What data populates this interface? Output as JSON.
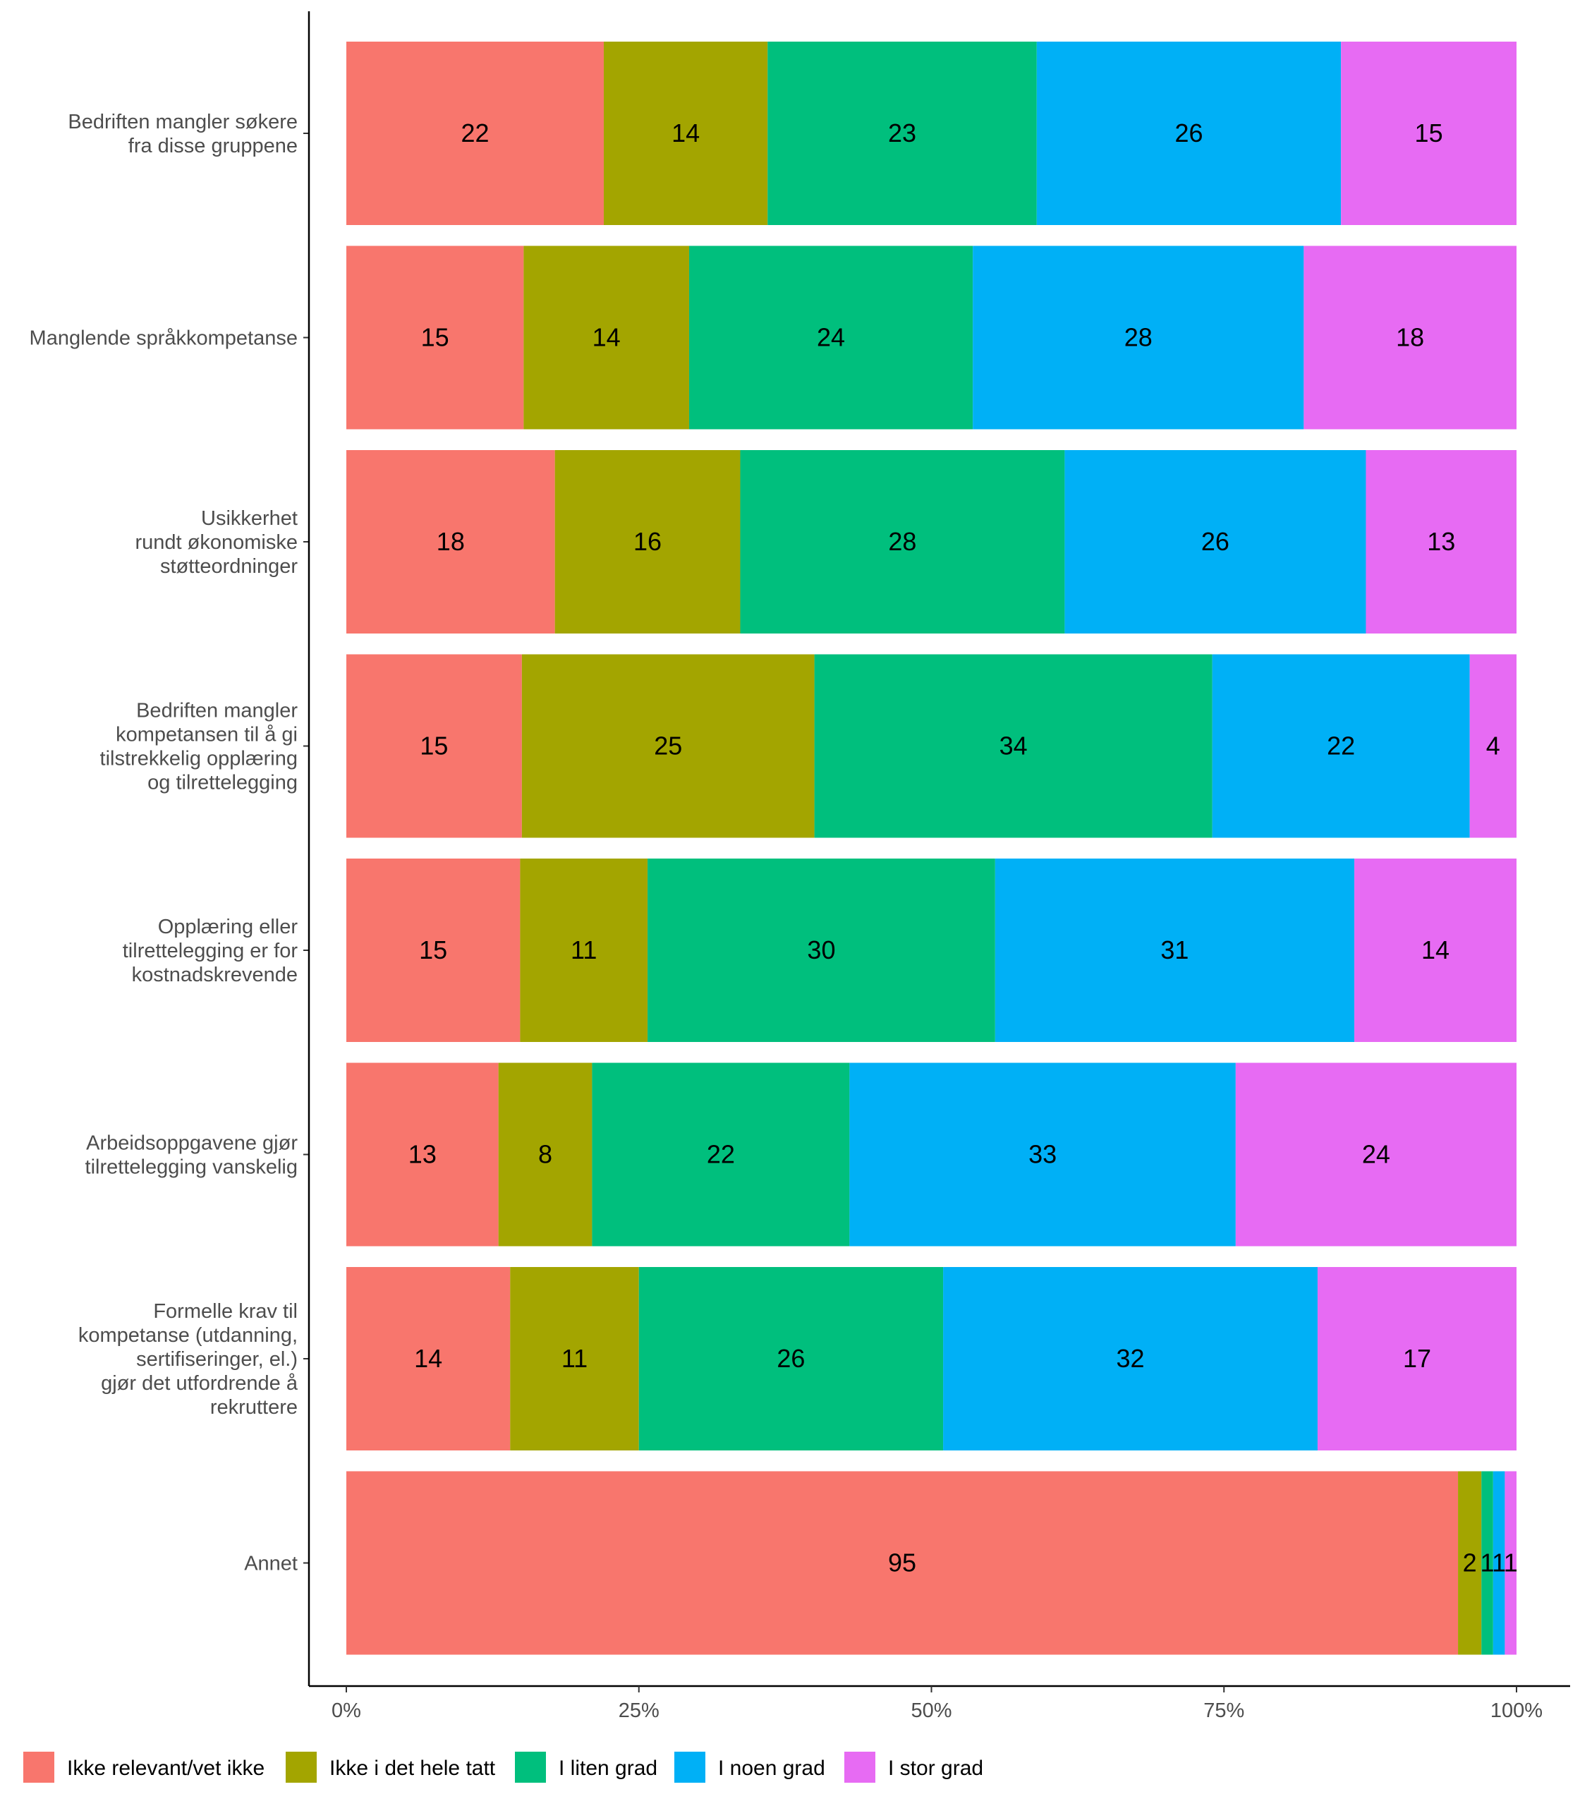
{
  "chart_data": {
    "type": "bar",
    "orientation": "horizontal",
    "stacked": true,
    "normalized": true,
    "categories": [
      [
        "Bedriften mangler søkere",
        "fra disse gruppene"
      ],
      [
        "Manglende språkkompetanse"
      ],
      [
        "Usikkerhet",
        "rundt økonomiske",
        "støtteordninger"
      ],
      [
        "Bedriften mangler",
        "kompetansen til å gi",
        "tilstrekkelig opplæring",
        "og tilrettelegging"
      ],
      [
        "Opplæring eller",
        "tilrettelegging er for",
        "kostnadskrevende"
      ],
      [
        "Arbeidsoppgavene gjør",
        "tilrettelegging vanskelig"
      ],
      [
        "Formelle krav til",
        "kompetanse (utdanning,",
        "sertifiseringer, el.)",
        "gjør det utfordrende å",
        "rekruttere"
      ],
      [
        "Annet"
      ]
    ],
    "series": [
      {
        "name": "Ikke relevant/vet ikke",
        "color": "#F8766D",
        "values": [
          22,
          15,
          18,
          15,
          15,
          13,
          14,
          95
        ]
      },
      {
        "name": "Ikke i det hele tatt",
        "color": "#A3A500",
        "values": [
          14,
          14,
          16,
          25,
          11,
          8,
          11,
          2
        ]
      },
      {
        "name": "I liten grad",
        "color": "#00BF7D",
        "values": [
          23,
          24,
          28,
          34,
          30,
          22,
          26,
          1
        ]
      },
      {
        "name": "I noen grad",
        "color": "#00B0F6",
        "values": [
          26,
          28,
          26,
          22,
          31,
          33,
          32,
          1
        ]
      },
      {
        "name": "I stor grad",
        "color": "#E76BF3",
        "values": [
          15,
          18,
          13,
          4,
          14,
          24,
          17,
          1
        ]
      }
    ],
    "x_ticks": [
      "0%",
      "25%",
      "50%",
      "75%",
      "100%"
    ],
    "xlim": [
      0,
      1
    ],
    "legend_position": "bottom",
    "grid": false
  }
}
